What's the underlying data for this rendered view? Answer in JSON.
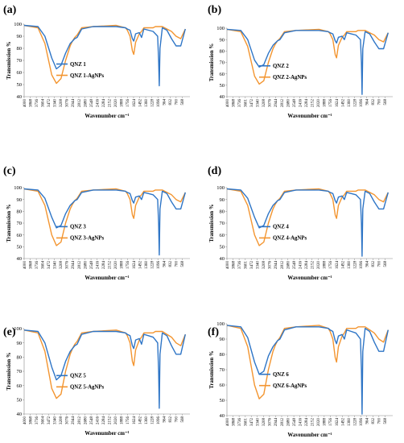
{
  "chart_data": [
    {
      "type": "line",
      "panel": "(a)",
      "xlabel": "Wavenumber cm⁻¹",
      "ylabel": "Transmission %",
      "xlim": [
        4000,
        400
      ],
      "ylim": [
        40,
        100
      ],
      "yticks": [
        40,
        50,
        60,
        70,
        80,
        90,
        100
      ],
      "xticks": [
        4000,
        3868,
        3736,
        3604,
        3472,
        3340,
        3208,
        3076,
        2944,
        2812,
        2680,
        2548,
        2416,
        2284,
        2152,
        2020,
        1888,
        1756,
        1624,
        1492,
        1360,
        1228,
        1096,
        964,
        832,
        700,
        568
      ],
      "x": [
        4000,
        3700,
        3550,
        3400,
        3300,
        3200,
        3100,
        3000,
        2950,
        2900,
        2850,
        2750,
        2500,
        2000,
        1800,
        1760,
        1700,
        1650,
        1620,
        1580,
        1500,
        1450,
        1400,
        1300,
        1200,
        1150,
        1100,
        1080,
        1065,
        1050,
        1000,
        900,
        800,
        700,
        600,
        500
      ],
      "series": [
        {
          "name": "QNZ 1",
          "color": "#2E75C6",
          "values": [
            99,
            98,
            90,
            72,
            63,
            66,
            76,
            84,
            86,
            88,
            89,
            96,
            98,
            98,
            97,
            96,
            95,
            88,
            86,
            92,
            93,
            89,
            96,
            95,
            94,
            92,
            90,
            70,
            49,
            80,
            97,
            95,
            88,
            82,
            82,
            96
          ]
        },
        {
          "name": "QNZ 1-AgNPs",
          "color": "#F39530",
          "values": [
            99,
            97,
            84,
            58,
            51,
            55,
            70,
            82,
            86,
            89,
            91,
            97,
            98,
            99,
            97,
            95,
            90,
            78,
            75,
            85,
            92,
            94,
            97,
            97,
            97,
            98,
            98,
            98,
            98,
            98,
            98,
            96,
            94,
            90,
            88,
            96
          ]
        }
      ]
    },
    {
      "type": "line",
      "panel": "(b)",
      "xlabel": "Wavenumber cm⁻¹",
      "ylabel": "Transmission %",
      "xlim": [
        4000,
        400
      ],
      "ylim": [
        40,
        100
      ],
      "yticks": [
        40,
        50,
        60,
        70,
        80,
        90,
        100
      ],
      "xticks": [
        4000,
        3868,
        3736,
        3601,
        3472,
        3340,
        3208,
        3076,
        2944,
        2812,
        2680,
        2548,
        2416,
        2284,
        2152,
        2020,
        1888,
        1756,
        1624,
        1492,
        1360,
        1228,
        1096,
        964,
        832,
        700,
        568
      ],
      "x": [
        4000,
        3700,
        3550,
        3400,
        3300,
        3200,
        3100,
        3000,
        2950,
        2900,
        2850,
        2750,
        2500,
        2000,
        1800,
        1760,
        1700,
        1650,
        1620,
        1580,
        1500,
        1450,
        1400,
        1300,
        1200,
        1150,
        1100,
        1080,
        1065,
        1050,
        1000,
        900,
        800,
        700,
        600,
        500
      ],
      "series": [
        {
          "name": "QNZ 2",
          "color": "#2E75C6",
          "values": [
            99,
            98,
            90,
            72,
            66,
            68,
            78,
            85,
            87,
            89,
            90,
            96,
            98,
            98,
            97,
            96,
            95,
            89,
            87,
            92,
            93,
            90,
            96,
            95,
            94,
            92,
            90,
            70,
            42,
            82,
            97,
            95,
            88,
            82,
            82,
            96
          ]
        },
        {
          "name": "QNZ 2-AgNPs",
          "color": "#F39530",
          "values": [
            99,
            97,
            84,
            58,
            51,
            54,
            70,
            82,
            86,
            89,
            91,
            97,
            98,
            99,
            97,
            95,
            90,
            77,
            74,
            85,
            92,
            94,
            97,
            97,
            97,
            98,
            98,
            98,
            98,
            98,
            98,
            96,
            94,
            90,
            88,
            96
          ]
        }
      ]
    },
    {
      "type": "line",
      "panel": "(c)",
      "xlabel": "Wavenumber cm⁻¹",
      "ylabel": "Transmission %",
      "xlim": [
        4000,
        400
      ],
      "ylim": [
        40,
        100
      ],
      "yticks": [
        40,
        50,
        60,
        70,
        80,
        90,
        100
      ],
      "xticks": [
        4000,
        3868,
        3736,
        3604,
        3472,
        3340,
        3208,
        3076,
        2944,
        2812,
        2680,
        2548,
        2416,
        2284,
        2152,
        2020,
        1888,
        1756,
        1624,
        1492,
        1360,
        1228,
        1096,
        964,
        832,
        700,
        568
      ],
      "x": [
        4000,
        3700,
        3550,
        3400,
        3300,
        3200,
        3100,
        3000,
        2950,
        2900,
        2850,
        2750,
        2500,
        2000,
        1800,
        1760,
        1700,
        1650,
        1620,
        1580,
        1500,
        1450,
        1400,
        1300,
        1200,
        1150,
        1100,
        1080,
        1065,
        1050,
        1000,
        900,
        800,
        700,
        600,
        500
      ],
      "series": [
        {
          "name": "QNZ 3",
          "color": "#2E75C6",
          "values": [
            99,
            98,
            91,
            75,
            66,
            68,
            78,
            85,
            87,
            89,
            90,
            96,
            98,
            98,
            97,
            96,
            95,
            89,
            87,
            92,
            93,
            90,
            96,
            95,
            94,
            92,
            90,
            70,
            43,
            82,
            97,
            95,
            88,
            82,
            82,
            96
          ]
        },
        {
          "name": "QNZ 3-AgNPs",
          "color": "#F39530",
          "values": [
            99,
            97,
            85,
            60,
            51,
            54,
            70,
            82,
            86,
            89,
            91,
            97,
            98,
            99,
            97,
            95,
            90,
            77,
            74,
            85,
            92,
            94,
            97,
            97,
            97,
            98,
            98,
            98,
            98,
            98,
            98,
            96,
            94,
            90,
            88,
            96
          ]
        }
      ]
    },
    {
      "type": "line",
      "panel": "(d)",
      "xlabel": "Wavenumber cm⁻¹",
      "ylabel": "Transmission %",
      "xlim": [
        4000,
        400
      ],
      "ylim": [
        40,
        100
      ],
      "yticks": [
        40,
        50,
        60,
        70,
        80,
        90,
        100
      ],
      "xticks": [
        4000,
        3868,
        3736,
        3601,
        3472,
        3340,
        3208,
        3076,
        2944,
        2812,
        2680,
        2548,
        2416,
        2284,
        2152,
        2020,
        1888,
        1756,
        1624,
        1492,
        1360,
        1228,
        1096,
        964,
        832,
        700,
        568
      ],
      "x": [
        4000,
        3700,
        3550,
        3400,
        3300,
        3200,
        3100,
        3000,
        2950,
        2900,
        2850,
        2750,
        2500,
        2000,
        1800,
        1760,
        1700,
        1650,
        1620,
        1580,
        1500,
        1450,
        1400,
        1300,
        1200,
        1150,
        1100,
        1080,
        1065,
        1050,
        1000,
        900,
        800,
        700,
        600,
        500
      ],
      "series": [
        {
          "name": "QNZ 4",
          "color": "#2E75C6",
          "values": [
            99,
            98,
            91,
            75,
            66,
            68,
            78,
            85,
            87,
            89,
            90,
            96,
            98,
            98,
            97,
            96,
            95,
            89,
            87,
            92,
            93,
            90,
            96,
            95,
            94,
            92,
            90,
            70,
            42,
            82,
            97,
            95,
            88,
            82,
            82,
            96
          ]
        },
        {
          "name": "QNZ 4-AgNPs",
          "color": "#F39530",
          "values": [
            99,
            97,
            85,
            60,
            51,
            54,
            70,
            82,
            86,
            89,
            91,
            97,
            98,
            99,
            97,
            95,
            90,
            77,
            74,
            85,
            92,
            94,
            97,
            97,
            97,
            98,
            98,
            98,
            98,
            98,
            98,
            96,
            94,
            90,
            88,
            96
          ]
        }
      ]
    },
    {
      "type": "line",
      "panel": "(e)",
      "xlabel": "Wavenumber cm⁻¹",
      "ylabel": "Transmission %",
      "xlim": [
        4000,
        400
      ],
      "ylim": [
        40,
        100
      ],
      "yticks": [
        40,
        50,
        60,
        70,
        80,
        90,
        100
      ],
      "xticks": [
        4000,
        3868,
        3736,
        3604,
        3472,
        3340,
        3208,
        3076,
        2944,
        2812,
        2680,
        2548,
        2416,
        2284,
        2152,
        2020,
        1888,
        1756,
        1624,
        1492,
        1360,
        1228,
        1096,
        964,
        832,
        700,
        568
      ],
      "x": [
        4000,
        3700,
        3550,
        3400,
        3300,
        3200,
        3100,
        3000,
        2950,
        2900,
        2850,
        2750,
        2500,
        2000,
        1800,
        1760,
        1700,
        1650,
        1620,
        1580,
        1500,
        1450,
        1400,
        1300,
        1200,
        1150,
        1100,
        1080,
        1065,
        1050,
        1000,
        900,
        800,
        700,
        600,
        500
      ],
      "series": [
        {
          "name": "QNZ 5",
          "color": "#2E75C6",
          "values": [
            99,
            98,
            90,
            73,
            64,
            67,
            77,
            84,
            86,
            88,
            89,
            96,
            98,
            98,
            97,
            96,
            95,
            88,
            86,
            92,
            93,
            89,
            96,
            95,
            94,
            92,
            90,
            70,
            44,
            82,
            97,
            95,
            88,
            82,
            82,
            96
          ]
        },
        {
          "name": "QNZ 5-AgNPs",
          "color": "#F39530",
          "values": [
            99,
            97,
            84,
            58,
            51,
            54,
            70,
            82,
            86,
            89,
            91,
            97,
            98,
            99,
            97,
            95,
            90,
            77,
            74,
            85,
            92,
            94,
            97,
            97,
            97,
            98,
            98,
            98,
            98,
            98,
            98,
            96,
            94,
            90,
            88,
            96
          ]
        }
      ]
    },
    {
      "type": "line",
      "panel": "(f)",
      "xlabel": "Wavenumber cm⁻¹",
      "ylabel": "Transmission %",
      "xlim": [
        4000,
        400
      ],
      "ylim": [
        40,
        100
      ],
      "yticks": [
        40,
        50,
        60,
        70,
        80,
        90,
        100
      ],
      "xticks": [
        4000,
        3868,
        3736,
        3601,
        3472,
        3340,
        3208,
        3076,
        2944,
        2812,
        2680,
        2548,
        2416,
        2284,
        2152,
        2020,
        1888,
        1756,
        1624,
        1492,
        1360,
        1228,
        1096,
        964,
        832,
        700,
        568
      ],
      "x": [
        4000,
        3700,
        3550,
        3400,
        3300,
        3200,
        3100,
        3000,
        2950,
        2900,
        2850,
        2750,
        2500,
        2000,
        1800,
        1760,
        1700,
        1650,
        1620,
        1580,
        1500,
        1450,
        1400,
        1300,
        1200,
        1150,
        1100,
        1080,
        1065,
        1050,
        1000,
        900,
        800,
        700,
        600,
        500
      ],
      "series": [
        {
          "name": "QNZ 6",
          "color": "#2E75C6",
          "values": [
            99,
            98,
            91,
            75,
            67,
            69,
            79,
            85,
            87,
            89,
            90,
            96,
            98,
            98,
            97,
            96,
            95,
            89,
            87,
            92,
            93,
            90,
            96,
            95,
            94,
            92,
            90,
            70,
            41,
            82,
            97,
            95,
            88,
            82,
            82,
            96
          ]
        },
        {
          "name": "QNZ 6-AgNPs",
          "color": "#F39530",
          "values": [
            99,
            97,
            85,
            60,
            51,
            54,
            70,
            82,
            86,
            89,
            91,
            97,
            98,
            99,
            97,
            95,
            90,
            78,
            75,
            85,
            92,
            94,
            97,
            97,
            97,
            98,
            98,
            98,
            98,
            98,
            98,
            96,
            94,
            90,
            88,
            96
          ]
        }
      ]
    }
  ]
}
